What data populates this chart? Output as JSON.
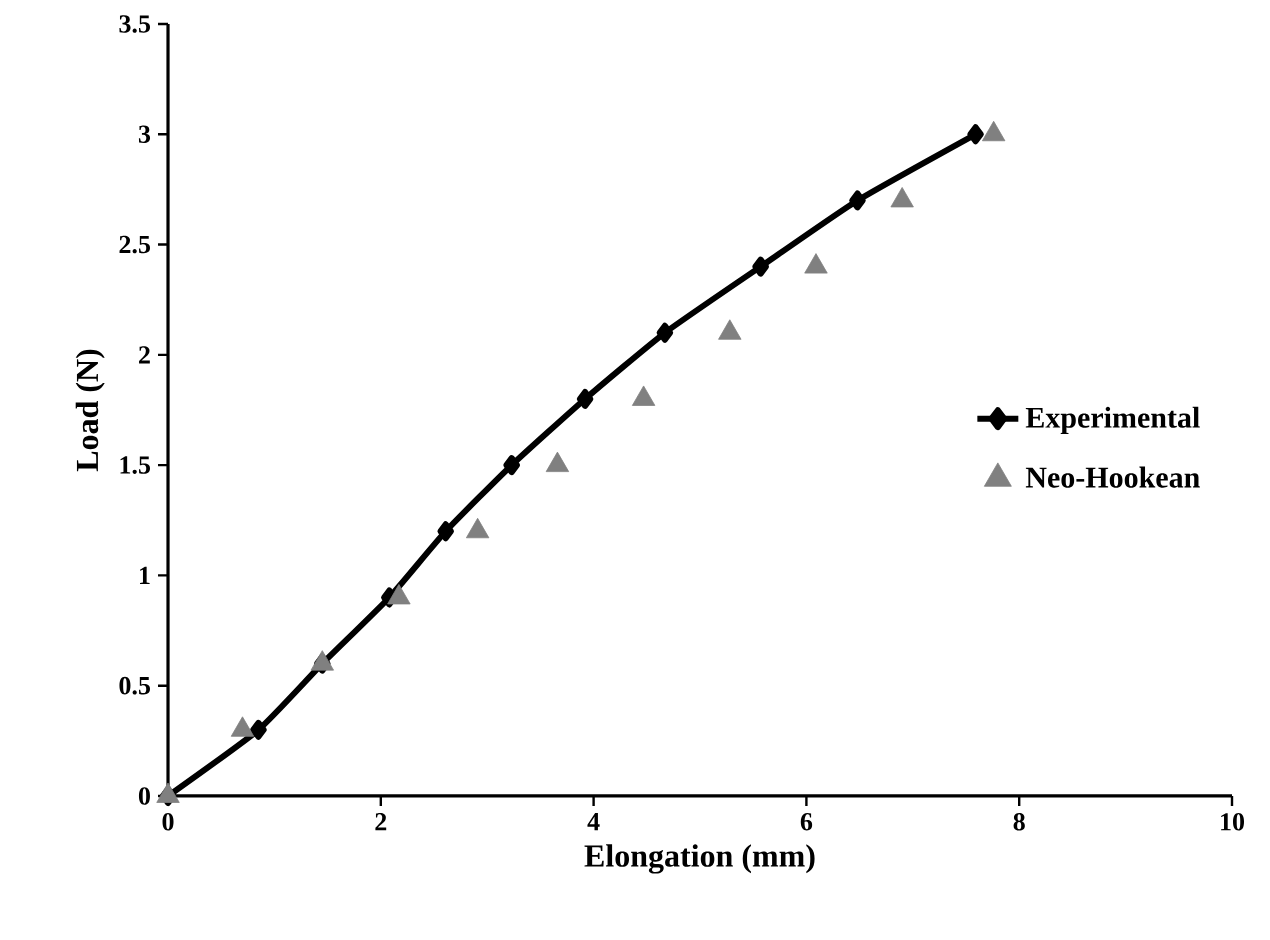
{
  "chart_data": {
    "type": "line",
    "xlabel": "Elongation (mm)",
    "ylabel": "Load (N)",
    "xlim": [
      0,
      10
    ],
    "ylim": [
      0,
      3.5
    ],
    "xticks": [
      0,
      2,
      4,
      6,
      8,
      10
    ],
    "yticks": [
      0,
      0.5,
      1,
      1.5,
      2,
      2.5,
      3,
      3.5
    ],
    "legend": "right",
    "grid": false,
    "series": [
      {
        "name": "Experimental",
        "color": "#000000",
        "marker": "diamond",
        "x": [
          0,
          0.85,
          1.45,
          2.08,
          2.61,
          3.23,
          3.92,
          4.67,
          5.57,
          6.48,
          7.59
        ],
        "values": [
          0,
          0.3,
          0.6,
          0.9,
          1.2,
          1.5,
          1.8,
          2.1,
          2.4,
          2.7,
          3.0
        ]
      },
      {
        "name": "Neo-Hookean",
        "type": "scatter",
        "color": "#808080",
        "marker": "triangle",
        "x": [
          0,
          0.7,
          1.45,
          2.17,
          2.91,
          3.66,
          4.47,
          5.28,
          6.09,
          6.9,
          7.76
        ],
        "values": [
          0,
          0.3,
          0.6,
          0.9,
          1.2,
          1.5,
          1.8,
          2.1,
          2.4,
          2.7,
          3.0
        ]
      }
    ]
  }
}
